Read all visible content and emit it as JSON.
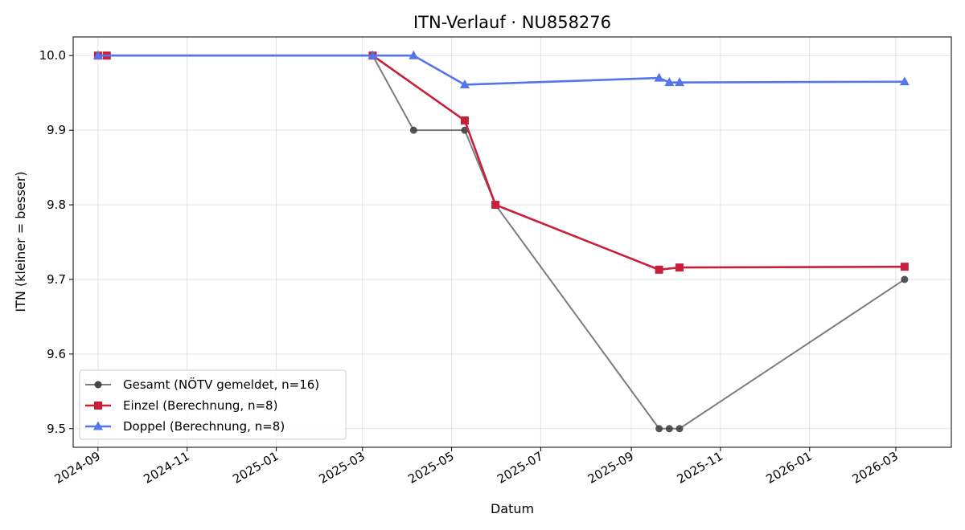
{
  "chart_data": {
    "type": "line",
    "title": "ITN-Verlauf · NU858276",
    "xlabel": "Datum",
    "ylabel": "ITN  (kleiner = besser)",
    "x_ticks": [
      "2024-09",
      "2024-11",
      "2025-01",
      "2025-03",
      "2025-05",
      "2025-07",
      "2025-09",
      "2025-11",
      "2026-01",
      "2026-03"
    ],
    "y_ticks": [
      "10.0",
      "9.9",
      "9.8",
      "9.7",
      "9.6",
      "9.5"
    ],
    "xlim": [
      "2024-08-15",
      "2026-04-08"
    ],
    "ylim": [
      9.475,
      10.025
    ],
    "grid": true,
    "legend_position": "lower-left",
    "series": [
      {
        "name": "Gesamt (NÖTV gemeldet, n=16)",
        "color": "#444444",
        "marker": "circle",
        "x": [
          "2024-09-01",
          "2024-09-07",
          "2025-03-08",
          "2025-04-05",
          "2025-05-10",
          "2025-05-31",
          "2025-09-20",
          "2025-09-27",
          "2025-10-04",
          "2026-03-07"
        ],
        "y": [
          10.0,
          10.0,
          10.0,
          9.9,
          9.9,
          9.8,
          9.5,
          9.5,
          9.5,
          9.7
        ]
      },
      {
        "name": "Einzel (Berechnung, n=8)",
        "color": "#c8203a",
        "marker": "square",
        "x": [
          "2024-09-01",
          "2024-09-07",
          "2025-03-08",
          "2025-05-10",
          "2025-05-31",
          "2025-09-20",
          "2025-10-04",
          "2026-03-07"
        ],
        "y": [
          10.0,
          10.0,
          10.0,
          9.913,
          9.8,
          9.713,
          9.716,
          9.717
        ]
      },
      {
        "name": "Doppel (Berechnung, n=8)",
        "color": "#5575ea",
        "marker": "triangle",
        "x": [
          "2024-09-01",
          "2025-03-08",
          "2025-04-05",
          "2025-05-10",
          "2025-09-20",
          "2025-09-27",
          "2025-10-04",
          "2026-03-07"
        ],
        "y": [
          10.0,
          10.0,
          10.0,
          9.961,
          9.97,
          9.964,
          9.964,
          9.965
        ]
      }
    ]
  }
}
